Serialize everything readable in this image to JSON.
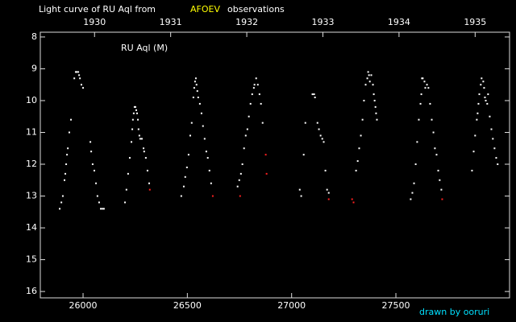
{
  "chart_data": {
    "type": "scatter",
    "title": "Light curve of RU Aql from",
    "source": "AFOEV",
    "title_suffix": "observations",
    "label": "RU Aql (M)",
    "credit": "drawn by ooruri",
    "xlim": [
      25795,
      28045
    ],
    "xticks": [
      26000,
      26500,
      27000,
      27500
    ],
    "x2lim": [
      25795,
      28045
    ],
    "x2ticks": [
      {
        "value": 26055,
        "label": "1930"
      },
      {
        "value": 26420,
        "label": "1931"
      },
      {
        "value": 26785,
        "label": "1932"
      },
      {
        "value": 27150,
        "label": "1933"
      },
      {
        "value": 27515,
        "label": "1934"
      },
      {
        "value": 27880,
        "label": "1935"
      }
    ],
    "ylim": [
      16.2,
      7.85
    ],
    "yticks": [
      8,
      9,
      10,
      11,
      12,
      13,
      14,
      15,
      16
    ],
    "series": [
      {
        "color": "#ffffff",
        "x": [
          25888,
          25896,
          25903,
          25911,
          25915,
          25919,
          25923,
          25927,
          25934,
          25942,
          25958,
          25965,
          25969,
          25977,
          25981,
          25985,
          25992,
          26000,
          26035,
          26039,
          26046,
          26054,
          26062,
          26069,
          26077,
          26085,
          26093,
          26100,
          26201,
          26208,
          26216,
          26224,
          26232,
          26236,
          26239,
          26243,
          26247,
          26251,
          26255,
          26259,
          26263,
          26266,
          26270,
          26274,
          26282,
          26290,
          26293,
          26301,
          26309,
          26317,
          26471,
          26483,
          26490,
          26498,
          26506,
          26514,
          26521,
          26529,
          26533,
          26537,
          26541,
          26544,
          26548,
          26552,
          26560,
          26568,
          26575,
          26583,
          26591,
          26598,
          26606,
          26614,
          26741,
          26749,
          26757,
          26764,
          26772,
          26780,
          26788,
          26795,
          26803,
          26811,
          26819,
          26822,
          26830,
          26838,
          26846,
          26853,
          26861,
          27039,
          27046,
          27058,
          27066,
          27100,
          27108,
          27112,
          27124,
          27131,
          27139,
          27147,
          27154,
          27162,
          27170,
          27178,
          27309,
          27317,
          27324,
          27332,
          27340,
          27347,
          27355,
          27363,
          27367,
          27371,
          27375,
          27382,
          27390,
          27394,
          27398,
          27402,
          27405,
          27409,
          27571,
          27579,
          27587,
          27595,
          27602,
          27610,
          27618,
          27622,
          27625,
          27629,
          27637,
          27641,
          27649,
          27656,
          27664,
          27672,
          27680,
          27687,
          27695,
          27703,
          27710,
          27718,
          27865,
          27873,
          27880,
          27888,
          27892,
          27896,
          27900,
          27907,
          27911,
          27919,
          27923,
          27927,
          27931,
          27938,
          27942,
          27950,
          27958,
          27965,
          27973,
          27981,
          27988
        ],
        "values": [
          13.4,
          13.2,
          13.0,
          12.5,
          12.3,
          12.0,
          11.7,
          11.5,
          11.0,
          10.6,
          9.3,
          9.1,
          9.1,
          9.1,
          9.2,
          9.3,
          9.5,
          9.6,
          11.3,
          11.6,
          12.0,
          12.2,
          12.6,
          13.0,
          13.2,
          13.4,
          13.4,
          13.4,
          13.2,
          12.8,
          12.3,
          11.8,
          11.3,
          10.9,
          10.6,
          10.4,
          10.2,
          10.2,
          10.3,
          10.4,
          10.6,
          10.9,
          11.1,
          11.2,
          11.2,
          11.5,
          11.6,
          11.8,
          12.2,
          12.6,
          13.0,
          12.7,
          12.4,
          12.1,
          11.7,
          11.1,
          10.7,
          9.9,
          9.6,
          9.4,
          9.3,
          9.5,
          9.7,
          9.9,
          10.1,
          10.4,
          10.8,
          11.2,
          11.6,
          11.8,
          12.2,
          12.6,
          12.7,
          12.5,
          12.3,
          12.0,
          11.5,
          11.1,
          10.9,
          10.5,
          10.1,
          9.8,
          9.6,
          9.5,
          9.3,
          9.5,
          9.8,
          10.1,
          10.7,
          12.8,
          13.0,
          11.7,
          10.7,
          9.8,
          9.8,
          9.9,
          10.7,
          10.9,
          11.1,
          11.2,
          11.3,
          12.2,
          12.8,
          12.9,
          12.2,
          11.9,
          11.5,
          11.1,
          10.6,
          10.0,
          9.5,
          9.3,
          9.1,
          9.2,
          9.4,
          9.2,
          9.5,
          9.8,
          10.0,
          10.2,
          10.4,
          10.6,
          13.1,
          12.9,
          12.6,
          12.0,
          11.3,
          10.6,
          10.1,
          9.8,
          9.3,
          9.3,
          9.4,
          9.6,
          9.5,
          9.6,
          10.1,
          10.6,
          11.0,
          11.5,
          11.7,
          12.2,
          12.5,
          12.8,
          12.2,
          11.6,
          11.1,
          10.6,
          10.4,
          10.1,
          9.8,
          9.5,
          9.3,
          9.4,
          9.6,
          9.9,
          10.0,
          10.1,
          9.8,
          10.5,
          10.9,
          11.2,
          11.5,
          11.8,
          12.0
        ]
      },
      {
        "color": "#ff2020",
        "x": [
          26320,
          26622,
          26753,
          26876,
          26880,
          27178,
          27290,
          27297,
          27722
        ],
        "values": [
          12.8,
          13.0,
          13.0,
          11.7,
          12.3,
          13.1,
          13.1,
          13.2,
          13.1
        ]
      }
    ]
  }
}
